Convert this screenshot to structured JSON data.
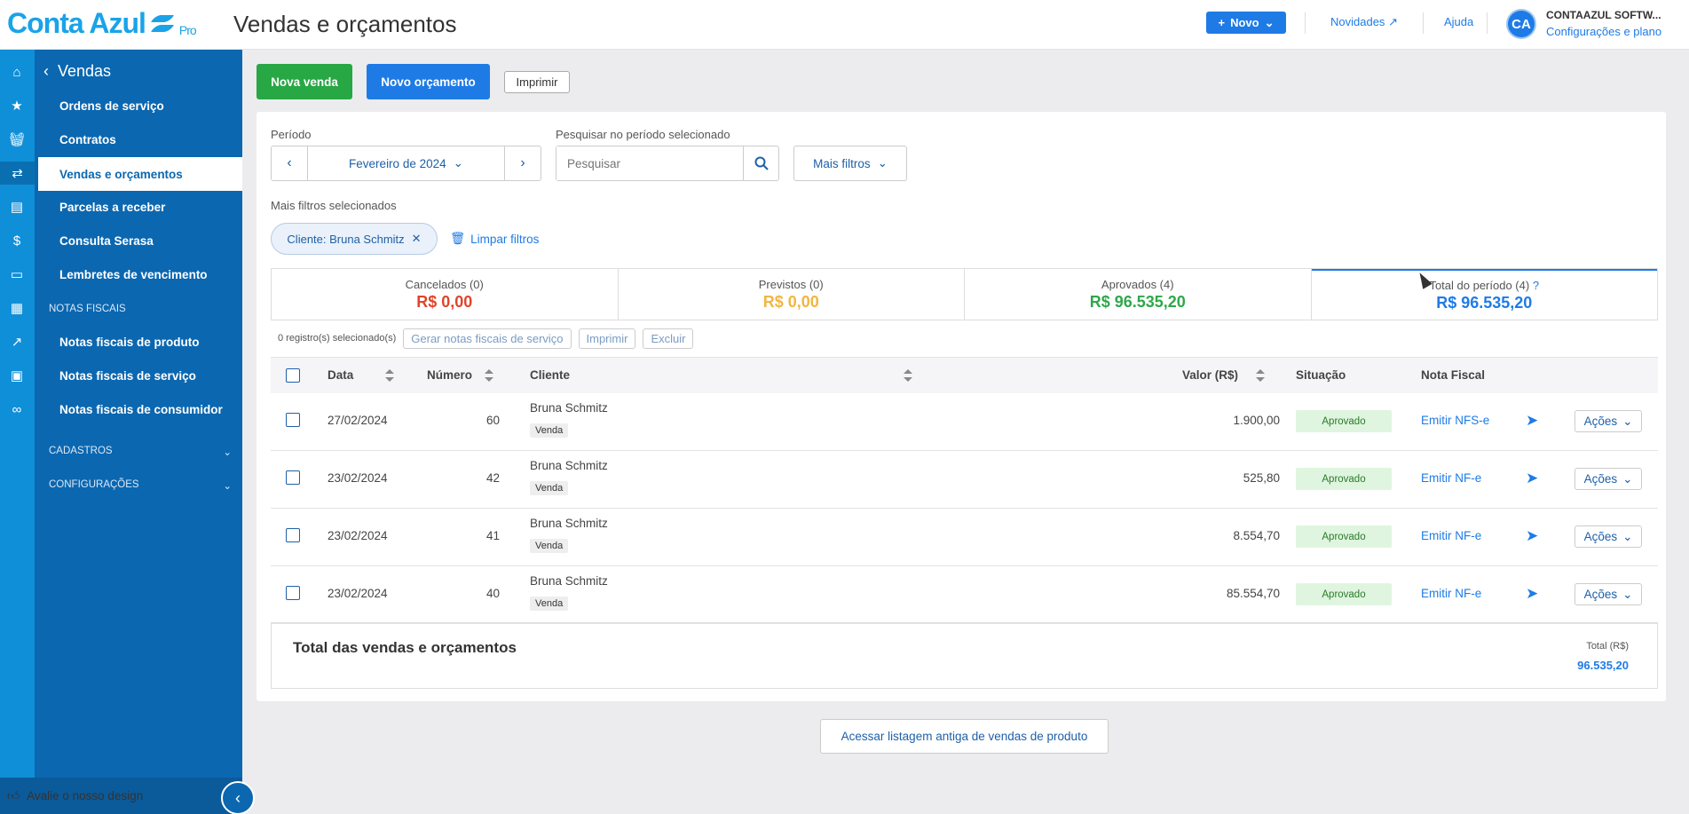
{
  "app": {
    "logo": "Conta Azul",
    "logo_badge": "Pro",
    "page_title": "Vendas e orçamentos"
  },
  "topbar": {
    "novo_label": "Novo",
    "novidades_label": "Novidades",
    "ajuda_label": "Ajuda",
    "avatar_initials": "CA",
    "company_name": "CONTAAZUL SOFTW...",
    "company_link": "Configurações e plano"
  },
  "sidebar": {
    "back_label": "Vendas",
    "items": [
      {
        "label": "Ordens de serviço"
      },
      {
        "label": "Contratos"
      },
      {
        "label": "Vendas e orçamentos"
      },
      {
        "label": "Parcelas a receber"
      },
      {
        "label": "Consulta Serasa"
      },
      {
        "label": "Lembretes de vencimento"
      }
    ],
    "section_notas": "NOTAS FISCAIS",
    "notas_items": [
      {
        "label": "Notas fiscais de produto"
      },
      {
        "label": "Notas fiscais de serviço"
      },
      {
        "label": "Notas fiscais de consumidor"
      }
    ],
    "section_cadastros": "CADASTROS",
    "section_config": "CONFIGURAÇÕES",
    "feedback_label": "Avalie o nosso design"
  },
  "toolbar": {
    "nova_venda": "Nova venda",
    "novo_orcamento": "Novo orçamento",
    "imprimir": "Imprimir"
  },
  "filters": {
    "periodo_label": "Período",
    "periodo_value": "Fevereiro de 2024",
    "search_label": "Pesquisar no período selecionado",
    "search_placeholder": "Pesquisar",
    "mais_filtros": "Mais filtros",
    "selected_label": "Mais filtros selecionados",
    "chip_label": "Cliente: Bruna Schmitz",
    "clear_label": "Limpar filtros"
  },
  "summary": [
    {
      "label": "Cancelados (0)",
      "value": "R$ 0,00",
      "color": "#e0452b"
    },
    {
      "label": "Previstos (0)",
      "value": "R$ 0,00",
      "color": "#f2b640"
    },
    {
      "label": "Aprovados (4)",
      "value": "R$ 96.535,20",
      "color": "#2ea84a"
    },
    {
      "label": "Total do período (4)",
      "value": "R$ 96.535,20",
      "color": "#1e7be6"
    }
  ],
  "bulk": {
    "selected_text": "0 registro(s) selecionado(s)",
    "gerar": "Gerar notas fiscais de serviço",
    "imprimir": "Imprimir",
    "excluir": "Excluir"
  },
  "table": {
    "headers": {
      "data": "Data",
      "numero": "Número",
      "cliente": "Cliente",
      "valor": "Valor (R$)",
      "situacao": "Situação",
      "nota": "Nota Fiscal"
    },
    "rows": [
      {
        "date": "27/02/2024",
        "number": "60",
        "client": "Bruna Schmitz",
        "type": "Venda",
        "value": "1.900,00",
        "status": "Aprovado",
        "nf": "Emitir NFS-e",
        "actions": "Ações"
      },
      {
        "date": "23/02/2024",
        "number": "42",
        "client": "Bruna Schmitz",
        "type": "Venda",
        "value": "525,80",
        "status": "Aprovado",
        "nf": "Emitir NF-e",
        "actions": "Ações"
      },
      {
        "date": "23/02/2024",
        "number": "41",
        "client": "Bruna Schmitz",
        "type": "Venda",
        "value": "8.554,70",
        "status": "Aprovado",
        "nf": "Emitir NF-e",
        "actions": "Ações"
      },
      {
        "date": "23/02/2024",
        "number": "40",
        "client": "Bruna Schmitz",
        "type": "Venda",
        "value": "85.554,70",
        "status": "Aprovado",
        "nf": "Emitir NF-e",
        "actions": "Ações"
      }
    ]
  },
  "footer": {
    "title": "Total das vendas e orçamentos",
    "total_label": "Total (R$)",
    "total_value": "96.535,20"
  },
  "old_list_link": "Acessar listagem antiga de vendas de produto"
}
